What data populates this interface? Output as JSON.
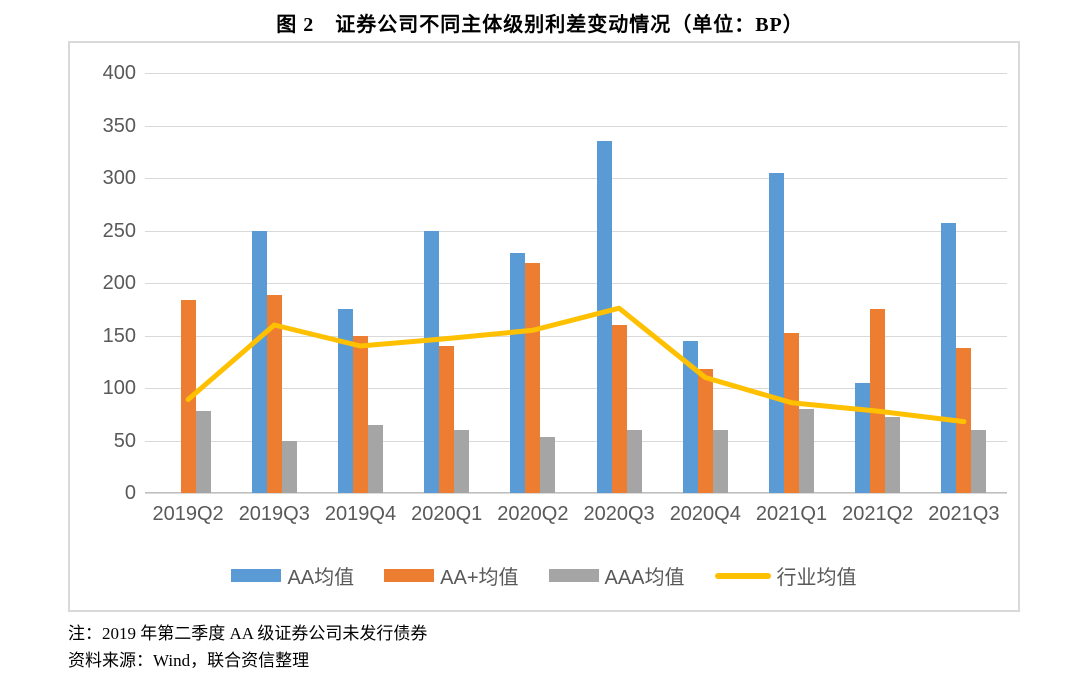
{
  "title": "图 2　证券公司不同主体级别利差变动情况（单位：BP）",
  "notes": {
    "note": "注：2019 年第二季度 AA 级证券公司未发行债券",
    "source": "资料来源：Wind，联合资信整理"
  },
  "colors": {
    "aa_blue": "#5B9BD5",
    "aa_plus_orange": "#ED7D31",
    "aaa_gray": "#A5A5A5",
    "industry_yellow": "#FFC000",
    "gridline": "#D9D9D9",
    "axis_text": "#595959"
  },
  "chart_data": {
    "type": "bar",
    "subtype": "grouped bars with line overlay",
    "title": "图 2　证券公司不同主体级别利差变动情况（单位：BP）",
    "xlabel": "",
    "ylabel": "",
    "ylim": [
      0,
      400
    ],
    "y_ticks": [
      0,
      50,
      100,
      150,
      200,
      250,
      300,
      350,
      400
    ],
    "grid": true,
    "legend_position": "bottom",
    "categories": [
      "2019Q2",
      "2019Q3",
      "2019Q4",
      "2020Q1",
      "2020Q2",
      "2020Q3",
      "2020Q4",
      "2021Q1",
      "2021Q2",
      "2021Q3"
    ],
    "series": [
      {
        "name": "AA均值",
        "type": "bar",
        "color": "#5B9BD5",
        "values": [
          null,
          250,
          175,
          250,
          229,
          335,
          145,
          305,
          105,
          257
        ]
      },
      {
        "name": "AA+均值",
        "type": "bar",
        "color": "#ED7D31",
        "values": [
          184,
          189,
          150,
          140,
          219,
          160,
          118,
          152,
          175,
          138
        ]
      },
      {
        "name": "AAA均值",
        "type": "bar",
        "color": "#A5A5A5",
        "values": [
          78,
          50,
          65,
          60,
          53,
          60,
          60,
          80,
          72,
          60
        ]
      },
      {
        "name": "行业均值",
        "type": "line",
        "color": "#FFC000",
        "values": [
          89,
          160,
          140,
          147,
          155,
          176,
          110,
          86,
          78,
          68
        ]
      }
    ]
  }
}
